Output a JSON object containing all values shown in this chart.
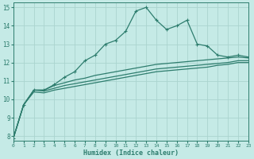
{
  "xlabel": "Humidex (Indice chaleur)",
  "x": [
    0,
    1,
    2,
    3,
    4,
    5,
    6,
    7,
    8,
    9,
    10,
    11,
    12,
    13,
    14,
    15,
    16,
    17,
    18,
    19,
    20,
    21,
    22,
    23
  ],
  "line1": [
    7.9,
    9.7,
    10.5,
    10.5,
    10.8,
    11.2,
    11.5,
    12.1,
    12.4,
    13.0,
    13.2,
    13.7,
    14.8,
    15.0,
    14.3,
    13.8,
    14.0,
    14.3,
    13.0,
    12.9,
    12.4,
    12.3,
    12.4,
    12.3
  ],
  "line2": [
    7.9,
    9.7,
    10.5,
    10.5,
    10.75,
    10.9,
    11.05,
    11.15,
    11.3,
    11.4,
    11.5,
    11.6,
    11.7,
    11.8,
    11.9,
    11.95,
    12.0,
    12.05,
    12.1,
    12.15,
    12.2,
    12.25,
    12.3,
    12.25
  ],
  "line3": [
    7.9,
    9.7,
    10.5,
    10.45,
    10.6,
    10.75,
    10.85,
    10.95,
    11.05,
    11.15,
    11.25,
    11.35,
    11.45,
    11.55,
    11.65,
    11.7,
    11.75,
    11.8,
    11.85,
    11.9,
    11.95,
    12.0,
    12.1,
    12.1
  ],
  "line4": [
    7.9,
    9.7,
    10.4,
    10.35,
    10.5,
    10.6,
    10.7,
    10.8,
    10.9,
    11.0,
    11.1,
    11.2,
    11.3,
    11.4,
    11.5,
    11.55,
    11.6,
    11.65,
    11.7,
    11.75,
    11.85,
    11.9,
    12.0,
    12.0
  ],
  "color": "#2e7d6e",
  "bg_color": "#c5eae6",
  "grid_color": "#aad4cf",
  "xlim": [
    0,
    23
  ],
  "ylim": [
    7.75,
    15.25
  ],
  "yticks": [
    8,
    9,
    10,
    11,
    12,
    13,
    14,
    15
  ],
  "xticks": [
    0,
    1,
    2,
    3,
    4,
    5,
    6,
    7,
    8,
    9,
    10,
    11,
    12,
    13,
    14,
    15,
    16,
    17,
    18,
    19,
    20,
    21,
    22,
    23
  ]
}
